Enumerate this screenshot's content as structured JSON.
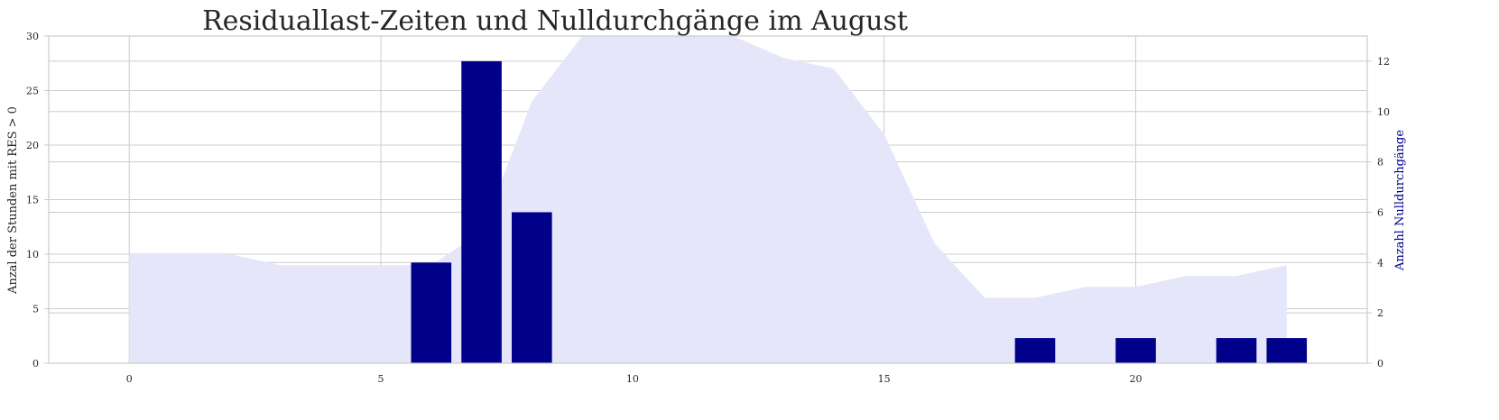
{
  "colors": {
    "area": "#e6e6fa",
    "bars": "#00008b",
    "grid": "#cccccc",
    "axis_frame": "#cccccc",
    "text": "#262626",
    "right_label": "#00008b"
  },
  "chart_data": {
    "type": "bar",
    "title": "Residuallast-Zeiten und Nulldurchgänge im August",
    "xlabel": "",
    "ylabel_left": "Anzal der Stunden mit RES > 0",
    "ylabel_right": "Anzahl Nulldurchgänge",
    "x_ticks": [
      "0",
      "5",
      "10",
      "15",
      "20"
    ],
    "y_left_ticks": [
      "0",
      "5",
      "10",
      "15",
      "20",
      "25",
      "30"
    ],
    "y_right_ticks": [
      "0",
      "2",
      "4",
      "6",
      "8",
      "10",
      "12"
    ],
    "xlim": [
      -1.6,
      24.6
    ],
    "ylim_left": [
      0,
      30
    ],
    "ylim_right": [
      0,
      13
    ],
    "grid": true,
    "area_series": {
      "axis": "left",
      "x": [
        0,
        1,
        2,
        3,
        4,
        5,
        6,
        7,
        8,
        9,
        10,
        11,
        12,
        13,
        14,
        15,
        16,
        17,
        18,
        19,
        20,
        21,
        22,
        23
      ],
      "values": [
        10,
        10,
        10,
        9,
        9,
        9,
        9,
        12,
        24,
        30,
        31,
        31,
        30,
        28,
        27,
        21,
        11,
        6,
        6,
        7,
        7,
        8,
        8,
        9
      ]
    },
    "bar_series": {
      "axis": "right",
      "x": [
        6,
        7,
        8,
        18,
        20,
        22,
        23
      ],
      "values": [
        4,
        12,
        6,
        1,
        1,
        1,
        1
      ]
    },
    "bar_width": 0.8
  }
}
